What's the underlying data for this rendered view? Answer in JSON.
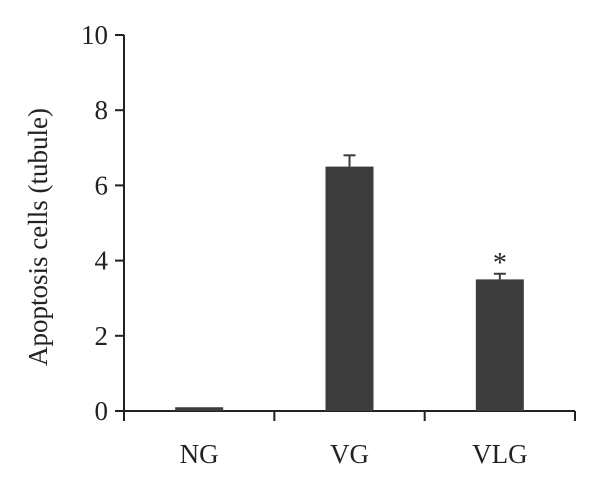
{
  "chart_data": {
    "type": "bar",
    "title": "",
    "xlabel": "",
    "ylabel": "Apoptosis cells (tubule)",
    "categories": [
      "NG",
      "VG",
      "VLG"
    ],
    "values": [
      0.1,
      6.5,
      3.5
    ],
    "errors": [
      0,
      0.3,
      0.15
    ],
    "annotations": [
      "",
      "",
      "*"
    ],
    "yticks": [
      "0",
      "2",
      "4",
      "6",
      "8",
      "10"
    ],
    "ylim": [
      0,
      10
    ],
    "grid": false,
    "legend": "none",
    "bar_color": "#3c3c3c"
  }
}
